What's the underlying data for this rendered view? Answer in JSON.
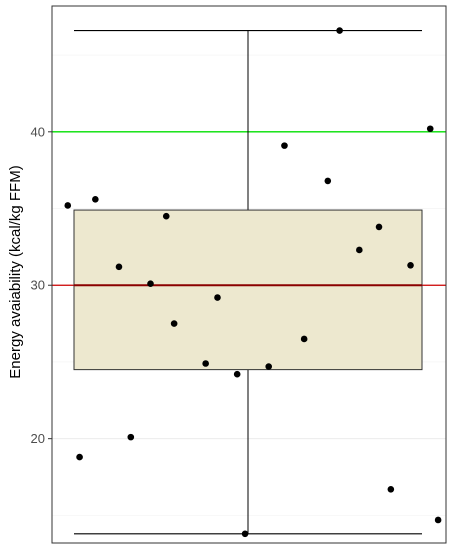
{
  "chart_data": {
    "type": "boxplot",
    "title": "",
    "xlabel": "",
    "ylabel": "Energy avaiability (kcal/kg FFM)",
    "ylim": [
      13.2,
      48.2
    ],
    "yticks": [
      20,
      30,
      40
    ],
    "grid": true,
    "box": {
      "min": 13.8,
      "q1": 24.5,
      "median": 30.0,
      "q3": 34.9,
      "max": 46.6,
      "fill": "#ede8cf",
      "median_color": "#8b0000"
    },
    "reference_lines": [
      {
        "y": 40,
        "color": "#00e000"
      },
      {
        "y": 30,
        "color": "#cc0000"
      }
    ],
    "points": [
      {
        "x": 0.04,
        "y": 35.2
      },
      {
        "x": 0.07,
        "y": 18.8
      },
      {
        "x": 0.11,
        "y": 35.6
      },
      {
        "x": 0.17,
        "y": 31.2
      },
      {
        "x": 0.2,
        "y": 20.1
      },
      {
        "x": 0.25,
        "y": 30.1
      },
      {
        "x": 0.29,
        "y": 34.5
      },
      {
        "x": 0.31,
        "y": 27.5
      },
      {
        "x": 0.39,
        "y": 24.9
      },
      {
        "x": 0.42,
        "y": 29.2
      },
      {
        "x": 0.47,
        "y": 24.2
      },
      {
        "x": 0.49,
        "y": 13.8
      },
      {
        "x": 0.55,
        "y": 24.7
      },
      {
        "x": 0.59,
        "y": 39.1
      },
      {
        "x": 0.64,
        "y": 26.5
      },
      {
        "x": 0.7,
        "y": 36.8
      },
      {
        "x": 0.73,
        "y": 46.6
      },
      {
        "x": 0.78,
        "y": 32.3
      },
      {
        "x": 0.83,
        "y": 33.8
      },
      {
        "x": 0.86,
        "y": 16.7
      },
      {
        "x": 0.91,
        "y": 31.3
      },
      {
        "x": 0.96,
        "y": 40.2
      },
      {
        "x": 0.98,
        "y": 14.7
      }
    ]
  }
}
